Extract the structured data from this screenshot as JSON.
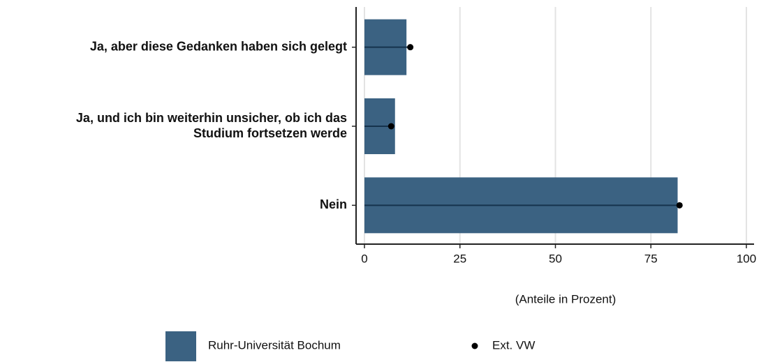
{
  "chart_data": {
    "type": "bar",
    "categories": [
      "Ja, aber diese Gedanken haben sich gelegt",
      "Ja, und ich bin weiterhin unsicher, ob ich das\nStudium fortsetzen werde",
      "Nein"
    ],
    "series": [
      {
        "name": "Ruhr-Universität Bochum",
        "color": "#3b6282",
        "values": [
          11,
          8,
          82
        ]
      },
      {
        "name": "Ext. VW",
        "color": "#000000",
        "values": [
          12,
          7,
          82.5
        ]
      }
    ],
    "xlim": [
      0,
      100
    ],
    "xticks": [
      0,
      25,
      50,
      75,
      100
    ],
    "grid": true,
    "xlabel": "(Anteile in Prozent)"
  }
}
